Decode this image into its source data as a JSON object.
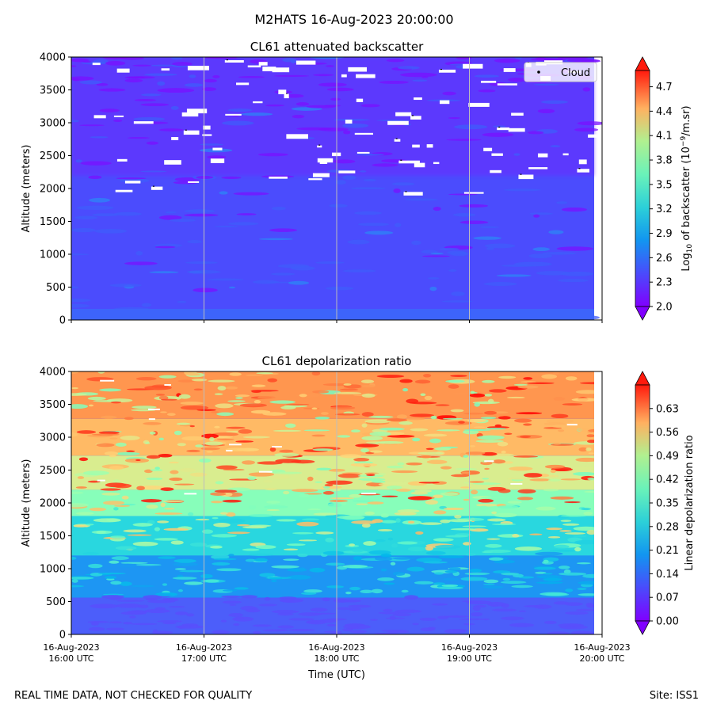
{
  "figure": {
    "suptitle": "M2HATS 16-Aug-2023 20:00:00",
    "footer_left": "REAL TIME DATA, NOT CHECKED FOR QUALITY",
    "footer_right": "Site: ISS1"
  },
  "chart_data": [
    {
      "type": "heatmap",
      "title": "CL61 attenuated backscatter",
      "ylabel": "Altitude (meters)",
      "ylim": [
        0,
        4000
      ],
      "yticks": [
        "0",
        "500",
        "1000",
        "1500",
        "2000",
        "2500",
        "3000",
        "3500",
        "4000"
      ],
      "x_ticks_shown": false,
      "colorbar": {
        "label_main": "Log",
        "label_sub": "10",
        "label_mid": " of backscatter (10",
        "label_sup": "−9",
        "label_end": "/m.sr)",
        "range": [
          2.0,
          4.9
        ],
        "ticks": [
          "2.0",
          "2.3",
          "2.6",
          "2.9",
          "3.2",
          "3.5",
          "3.8",
          "4.1",
          "4.4",
          "4.7"
        ],
        "extend": "both",
        "colormap": "rainbow"
      },
      "legend": {
        "entries": [
          "Cloud"
        ],
        "placement": "upper-right",
        "marker": "black-dot"
      },
      "dominant_value": 2.2
    },
    {
      "type": "heatmap",
      "title": "CL61 depolarization ratio",
      "xlabel": "Time (UTC)",
      "ylabel": "Altitude (meters)",
      "ylim": [
        0,
        4000
      ],
      "yticks": [
        "0",
        "500",
        "1000",
        "1500",
        "2000",
        "2500",
        "3000",
        "3500",
        "4000"
      ],
      "xticks": [
        {
          "date": "16-Aug-2023",
          "time": "16:00 UTC"
        },
        {
          "date": "16-Aug-2023",
          "time": "17:00 UTC"
        },
        {
          "date": "16-Aug-2023",
          "time": "18:00 UTC"
        },
        {
          "date": "16-Aug-2023",
          "time": "19:00 UTC"
        },
        {
          "date": "16-Aug-2023",
          "time": "20:00 UTC"
        }
      ],
      "colorbar": {
        "label": "Linear depolarization ratio",
        "range": [
          0.0,
          0.7
        ],
        "ticks": [
          "0.00",
          "0.07",
          "0.14",
          "0.21",
          "0.28",
          "0.35",
          "0.42",
          "0.49",
          "0.56",
          "0.63"
        ],
        "extend": "both",
        "colormap": "rainbow"
      }
    }
  ]
}
